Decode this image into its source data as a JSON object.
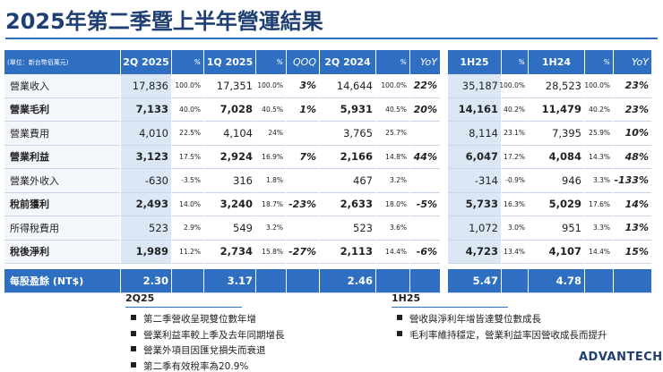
{
  "title": "2025年第二季暨上半年營運結果",
  "table": {
    "unit_note": "(單位：新台幣佰萬元)",
    "columns": [
      "2Q 2025",
      "%",
      "1Q 2025",
      "%",
      "QOQ",
      "2Q 2024",
      "%",
      "YoY",
      "1H25",
      "%",
      "1H24",
      "%",
      "YoY"
    ],
    "rows": [
      {
        "label": "營業收入",
        "bold": false,
        "cells": [
          "17,836",
          "100.0%",
          "17,351",
          "100.0%",
          "3%",
          "14,644",
          "100.0%",
          "22%",
          "35,187",
          "100.0%",
          "28,523",
          "100.0%",
          "23%"
        ]
      },
      {
        "label": "營業毛利",
        "bold": true,
        "cells": [
          "7,133",
          "40.0%",
          "7,028",
          "40.5%",
          "1%",
          "5,931",
          "40.5%",
          "20%",
          "14,161",
          "40.2%",
          "11,479",
          "40.2%",
          "23%"
        ]
      },
      {
        "label": "營業費用",
        "bold": false,
        "cells": [
          "4,010",
          "22.5%",
          "4,104",
          "24%",
          null,
          "3,765",
          "25.7%",
          null,
          "8,114",
          "23.1%",
          "7,395",
          "25.9%",
          "10%"
        ]
      },
      {
        "label": "營業利益",
        "bold": true,
        "cells": [
          "3,123",
          "17.5%",
          "2,924",
          "16.9%",
          "7%",
          "2,166",
          "14.8%",
          "44%",
          "6,047",
          "17.2%",
          "4,084",
          "14.3%",
          "48%"
        ]
      },
      {
        "label": "營業外收入",
        "bold": false,
        "cells": [
          "-630",
          "-3.5%",
          "316",
          "1.8%",
          null,
          "467",
          "3.2%",
          null,
          "-314",
          "-0.9%",
          "946",
          "3.3%",
          "-133%"
        ]
      },
      {
        "label": "稅前獲利",
        "bold": true,
        "cells": [
          "2,493",
          "14.0%",
          "3,240",
          "18.7%",
          "-23%",
          "2,633",
          "18.0%",
          "-5%",
          "5,733",
          "16.3%",
          "5,029",
          "17.6%",
          "14%"
        ]
      },
      {
        "label": "所得稅費用",
        "bold": false,
        "cells": [
          "523",
          "2.9%",
          "549",
          "3.2%",
          null,
          "523",
          "3.6%",
          null,
          "1,072",
          "3.0%",
          "951",
          "3.3%",
          "13%"
        ]
      },
      {
        "label": "稅後淨利",
        "bold": true,
        "cells": [
          "1,989",
          "11.2%",
          "2,734",
          "15.8%",
          "-27%",
          "2,113",
          "14.4%",
          "-6%",
          "4,723",
          "13.4%",
          "4,107",
          "14.4%",
          "15%"
        ]
      }
    ],
    "eps_row": {
      "label": "每股盈餘 (NT$)",
      "cells": [
        "2.30",
        null,
        "3.17",
        null,
        null,
        "2.46",
        null,
        null,
        "5.47",
        null,
        "4.78",
        null,
        null
      ]
    }
  },
  "notes": [
    {
      "heading": "2Q25",
      "items": [
        "第二季營收呈現雙位數年增",
        "營業利益率較上季及去年同期增長",
        "營業外項目因匯兌損失而衰退",
        "第二季有效稅率為20.9%"
      ]
    },
    {
      "heading": "1H25",
      "items": [
        "營收與淨利年增皆達雙位數成長",
        "毛利率維持穩定，營業利益率因營收成長而提升"
      ]
    }
  ],
  "logo": "ADVANTECH"
}
